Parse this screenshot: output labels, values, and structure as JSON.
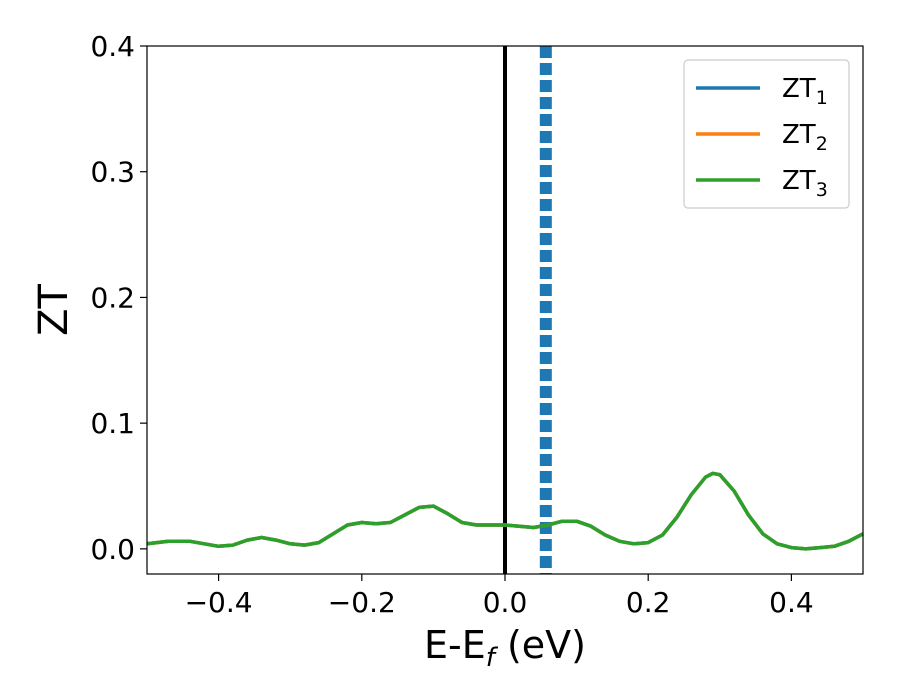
{
  "chart_data": {
    "type": "line",
    "xlabel": {
      "base": "E-E",
      "sub": "f",
      "rest": " (eV)"
    },
    "ylabel": "ZT",
    "xlim": [
      -0.5,
      0.5
    ],
    "ylim": [
      -0.02,
      0.4
    ],
    "xticks": [
      -0.4,
      -0.2,
      0.0,
      0.2,
      0.4
    ],
    "xtick_labels": [
      "−0.4",
      "−0.2",
      "0.0",
      "0.2",
      "0.4"
    ],
    "yticks": [
      0.0,
      0.1,
      0.2,
      0.3,
      0.4
    ],
    "ytick_labels": [
      "0.0",
      "0.1",
      "0.2",
      "0.3",
      "0.4"
    ],
    "legend_position": "top-right",
    "fermi_line": {
      "x": 0.0,
      "color": "#000000"
    },
    "marker_line": {
      "x": 0.057,
      "color": "#1f77b4",
      "style": "dashed"
    },
    "series": [
      {
        "name_base": "ZT",
        "name_sub": "1",
        "color": "#1f77b4",
        "x": [
          -0.5,
          -0.47,
          -0.44,
          -0.42,
          -0.4,
          -0.38,
          -0.36,
          -0.34,
          -0.32,
          -0.3,
          -0.28,
          -0.26,
          -0.24,
          -0.22,
          -0.2,
          -0.18,
          -0.16,
          -0.14,
          -0.12,
          -0.1,
          -0.08,
          -0.06,
          -0.04,
          -0.02,
          0.0,
          0.02,
          0.04,
          0.06,
          0.08,
          0.1,
          0.12,
          0.14,
          0.16,
          0.18,
          0.2,
          0.22,
          0.24,
          0.26,
          0.28,
          0.29,
          0.3,
          0.32,
          0.34,
          0.36,
          0.38,
          0.4,
          0.42,
          0.44,
          0.46,
          0.48,
          0.5
        ],
        "y": [
          0.004,
          0.006,
          0.006,
          0.004,
          0.002,
          0.003,
          0.007,
          0.009,
          0.007,
          0.004,
          0.003,
          0.005,
          0.012,
          0.019,
          0.021,
          0.02,
          0.021,
          0.027,
          0.033,
          0.034,
          0.028,
          0.021,
          0.019,
          0.019,
          0.019,
          0.018,
          0.017,
          0.019,
          0.022,
          0.022,
          0.018,
          0.011,
          0.006,
          0.004,
          0.005,
          0.011,
          0.025,
          0.043,
          0.057,
          0.06,
          0.059,
          0.046,
          0.027,
          0.012,
          0.004,
          0.001,
          0.0,
          0.001,
          0.002,
          0.006,
          0.012
        ]
      },
      {
        "name_base": "ZT",
        "name_sub": "2",
        "color": "#ff7f0e",
        "x": [
          -0.5,
          -0.47,
          -0.44,
          -0.42,
          -0.4,
          -0.38,
          -0.36,
          -0.34,
          -0.32,
          -0.3,
          -0.28,
          -0.26,
          -0.24,
          -0.22,
          -0.2,
          -0.18,
          -0.16,
          -0.14,
          -0.12,
          -0.1,
          -0.08,
          -0.06,
          -0.04,
          -0.02,
          0.0,
          0.02,
          0.04,
          0.06,
          0.08,
          0.1,
          0.12,
          0.14,
          0.16,
          0.18,
          0.2,
          0.22,
          0.24,
          0.26,
          0.28,
          0.29,
          0.3,
          0.32,
          0.34,
          0.36,
          0.38,
          0.4,
          0.42,
          0.44,
          0.46,
          0.48,
          0.5
        ],
        "y": [
          0.004,
          0.006,
          0.006,
          0.004,
          0.002,
          0.003,
          0.007,
          0.009,
          0.007,
          0.004,
          0.003,
          0.005,
          0.012,
          0.019,
          0.021,
          0.02,
          0.021,
          0.027,
          0.033,
          0.034,
          0.028,
          0.021,
          0.019,
          0.019,
          0.019,
          0.018,
          0.017,
          0.019,
          0.022,
          0.022,
          0.018,
          0.011,
          0.006,
          0.004,
          0.005,
          0.011,
          0.025,
          0.043,
          0.057,
          0.06,
          0.059,
          0.046,
          0.027,
          0.012,
          0.004,
          0.001,
          0.0,
          0.001,
          0.002,
          0.006,
          0.012
        ]
      },
      {
        "name_base": "ZT",
        "name_sub": "3",
        "color": "#2ca02c",
        "x": [
          -0.5,
          -0.47,
          -0.44,
          -0.42,
          -0.4,
          -0.38,
          -0.36,
          -0.34,
          -0.32,
          -0.3,
          -0.28,
          -0.26,
          -0.24,
          -0.22,
          -0.2,
          -0.18,
          -0.16,
          -0.14,
          -0.12,
          -0.1,
          -0.08,
          -0.06,
          -0.04,
          -0.02,
          0.0,
          0.02,
          0.04,
          0.06,
          0.08,
          0.1,
          0.12,
          0.14,
          0.16,
          0.18,
          0.2,
          0.22,
          0.24,
          0.26,
          0.28,
          0.29,
          0.3,
          0.32,
          0.34,
          0.36,
          0.38,
          0.4,
          0.42,
          0.44,
          0.46,
          0.48,
          0.5
        ],
        "y": [
          0.004,
          0.006,
          0.006,
          0.004,
          0.002,
          0.003,
          0.007,
          0.009,
          0.007,
          0.004,
          0.003,
          0.005,
          0.012,
          0.019,
          0.021,
          0.02,
          0.021,
          0.027,
          0.033,
          0.034,
          0.028,
          0.021,
          0.019,
          0.019,
          0.019,
          0.018,
          0.017,
          0.019,
          0.022,
          0.022,
          0.018,
          0.011,
          0.006,
          0.004,
          0.005,
          0.011,
          0.025,
          0.043,
          0.057,
          0.06,
          0.059,
          0.046,
          0.027,
          0.012,
          0.004,
          0.001,
          0.0,
          0.001,
          0.002,
          0.006,
          0.012
        ]
      }
    ]
  }
}
